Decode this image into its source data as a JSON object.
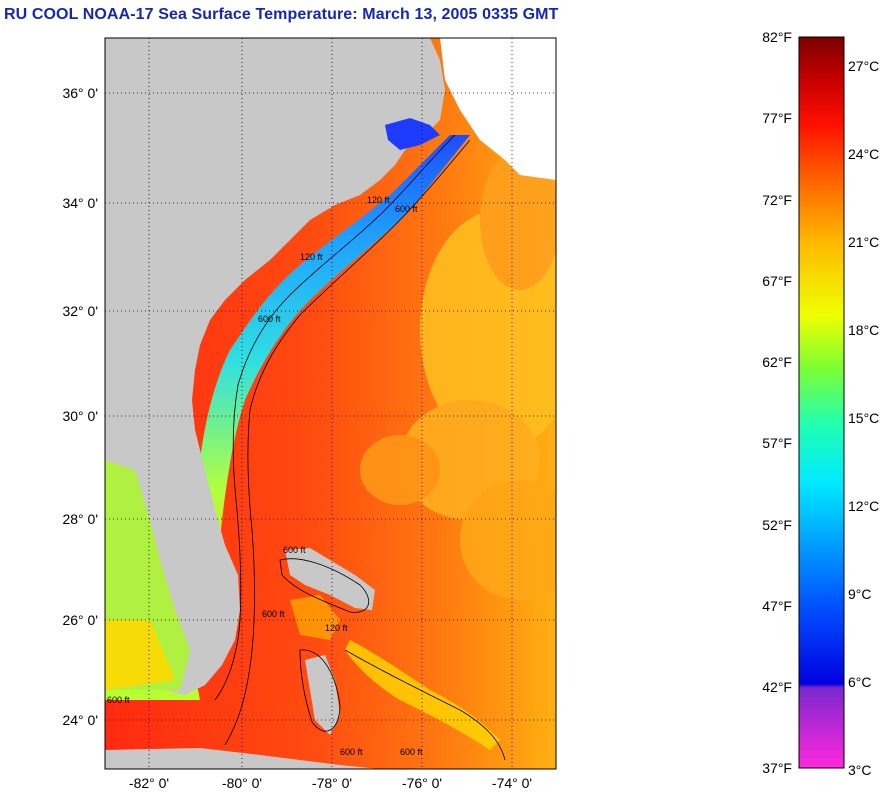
{
  "title": "RU COOL  NOAA-17  Sea Surface Temperature:  March 13, 2005 0335 GMT",
  "map": {
    "lat_labels": [
      "36° 0'",
      "34° 0'",
      "32° 0'",
      "30° 0'",
      "28° 0'",
      "26° 0'",
      "24° 0'"
    ],
    "lon_labels": [
      "-82° 0'",
      "-80° 0'",
      "-78° 0'",
      "-76° 0'",
      "-74° 0'"
    ],
    "contour_labels": [
      "120 ft",
      "600 ft"
    ]
  },
  "colorbar": {
    "f_labels": [
      "82°F",
      "77°F",
      "72°F",
      "67°F",
      "62°F",
      "57°F",
      "52°F",
      "47°F",
      "42°F",
      "37°F"
    ],
    "c_labels": [
      "27°C",
      "24°C",
      "21°C",
      "18°C",
      "15°C",
      "12°C",
      "9°C",
      "6°C",
      "3°C"
    ]
  },
  "colors": {
    "title": "#1428b4",
    "land": "#c8c8c8",
    "warm": "#ff3a10",
    "cool": "#1e90ff"
  }
}
